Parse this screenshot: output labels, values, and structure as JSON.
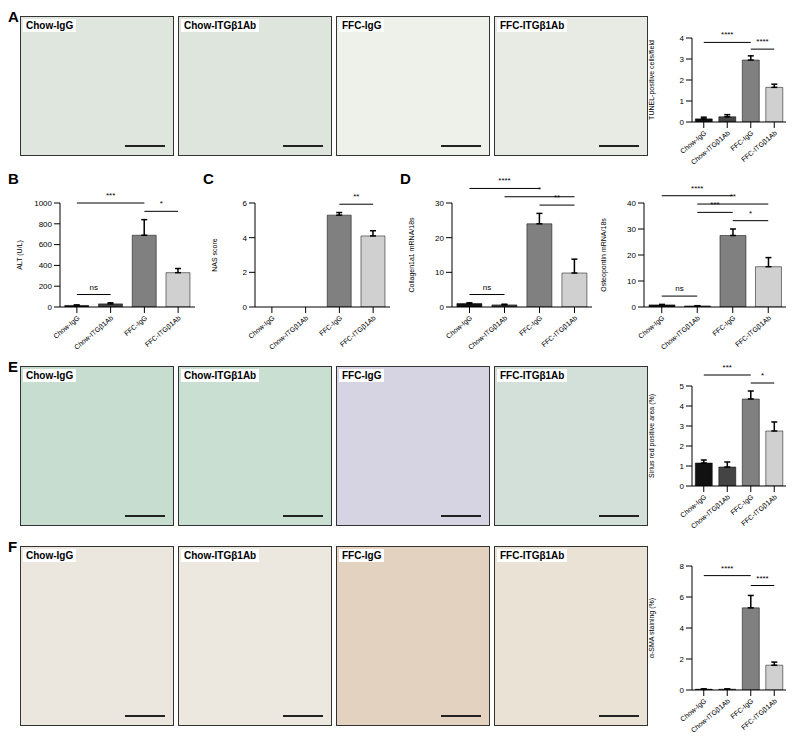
{
  "figure": {
    "panel_labels": [
      "A",
      "B",
      "C",
      "D",
      "E",
      "F"
    ],
    "image_rows": [
      {
        "panel": "A",
        "images": [
          "Chow-IgG",
          "Chow-ITGβ1Ab",
          "FFC-IgG",
          "FFC-ITGβ1Ab"
        ]
      },
      {
        "panel": "E",
        "images": [
          "Chow-IgG",
          "Chow-ITGβ1Ab",
          "FFC-IgG",
          "FFC-ITGβ1Ab"
        ]
      },
      {
        "panel": "F",
        "images": [
          "Chow-IgG",
          "Chow-ITGβ1Ab",
          "FFC-IgG",
          "FFC-ITGβ1Ab"
        ]
      }
    ]
  },
  "chart_data": [
    {
      "type": "bar",
      "ylabel": "TUNEL-positive cells/field",
      "categories": [
        "Chow-IgG",
        "Chow-ITGβ1Ab",
        "FFC-IgG",
        "FFC-ITGβ1Ab"
      ],
      "values": [
        0.15,
        0.25,
        2.95,
        1.65
      ],
      "errors": [
        0.08,
        0.1,
        0.2,
        0.15
      ],
      "colors": [
        "#111111",
        "#444444",
        "#808080",
        "#d0d0d0"
      ],
      "ylim": [
        0,
        4
      ],
      "yticks": [
        0,
        1,
        2,
        3,
        4
      ],
      "significance": [
        {
          "from": "FFC-IgG",
          "to": "FFC-ITGβ1Ab",
          "label": "****"
        },
        {
          "from": "Chow-IgG",
          "to": "FFC-IgG",
          "label": "****"
        }
      ]
    },
    {
      "type": "bar",
      "ylabel": "ALT (U/L)",
      "categories": [
        "Chow-IgG",
        "Chow-ITGβ1Ab",
        "FFC-IgG",
        "FFC-ITGβ1Ab"
      ],
      "values": [
        15,
        30,
        690,
        330
      ],
      "errors": [
        5,
        10,
        150,
        40
      ],
      "colors": [
        "#111111",
        "#444444",
        "#808080",
        "#d0d0d0"
      ],
      "ylim": [
        0,
        1000
      ],
      "yticks": [
        0,
        200,
        400,
        600,
        800,
        1000
      ],
      "significance": [
        {
          "from": "Chow-IgG",
          "to": "Chow-ITGβ1Ab",
          "label": "ns"
        },
        {
          "from": "FFC-IgG",
          "to": "FFC-ITGβ1Ab",
          "label": "*"
        },
        {
          "from": "Chow-IgG",
          "to": "FFC-IgG",
          "label": "***"
        }
      ]
    },
    {
      "type": "bar",
      "ylabel": "NAS score",
      "categories": [
        "Chow-IgG",
        "Chow-ITGβ1Ab",
        "FFC-IgG",
        "FFC-ITGβ1Ab"
      ],
      "values": [
        0,
        0,
        5.3,
        4.1
      ],
      "errors": [
        0,
        0,
        0.15,
        0.3
      ],
      "colors": [
        "#111111",
        "#444444",
        "#808080",
        "#d0d0d0"
      ],
      "ylim": [
        0,
        6
      ],
      "yticks": [
        0,
        2,
        4,
        6
      ],
      "significance": [
        {
          "from": "FFC-IgG",
          "to": "FFC-ITGβ1Ab",
          "label": "**"
        }
      ]
    },
    {
      "type": "bar",
      "ylabel": "Collagen1a1 mRNA/18s",
      "categories": [
        "Chow-IgG",
        "Chow-ITGβ1Ab",
        "FFC-IgG",
        "FFC-ITGβ1Ab"
      ],
      "values": [
        1,
        0.6,
        24,
        9.8
      ],
      "errors": [
        0.2,
        0.2,
        3,
        4
      ],
      "colors": [
        "#111111",
        "#444444",
        "#808080",
        "#d0d0d0"
      ],
      "ylim": [
        0,
        30
      ],
      "yticks": [
        0,
        10,
        20,
        30
      ],
      "significance": [
        {
          "from": "Chow-IgG",
          "to": "Chow-ITGβ1Ab",
          "label": "ns"
        },
        {
          "from": "FFC-IgG",
          "to": "FFC-ITGβ1Ab",
          "label": "**"
        },
        {
          "from": "Chow-ITGβ1Ab",
          "to": "FFC-ITGβ1Ab",
          "label": "*"
        },
        {
          "from": "Chow-IgG",
          "to": "FFC-IgG",
          "label": "****"
        }
      ]
    },
    {
      "type": "bar",
      "ylabel": "Osteopontin mRNA/18s",
      "categories": [
        "Chow-IgG",
        "Chow-ITGβ1Ab",
        "FFC-IgG",
        "FFC-ITGβ1Ab"
      ],
      "values": [
        0.8,
        0.4,
        27.5,
        15.5
      ],
      "errors": [
        0.2,
        0.1,
        2.5,
        3.5
      ],
      "colors": [
        "#111111",
        "#444444",
        "#808080",
        "#d0d0d0"
      ],
      "ylim": [
        0,
        40
      ],
      "yticks": [
        0,
        10,
        20,
        30,
        40
      ],
      "significance": [
        {
          "from": "Chow-IgG",
          "to": "Chow-ITGβ1Ab",
          "label": "ns"
        },
        {
          "from": "FFC-IgG",
          "to": "FFC-ITGβ1Ab",
          "label": "*"
        },
        {
          "from": "Chow-ITGβ1Ab",
          "to": "FFC-IgG",
          "label": "***"
        },
        {
          "from": "Chow-ITGβ1Ab",
          "to": "FFC-ITGβ1Ab",
          "label": "**"
        },
        {
          "from": "Chow-IgG",
          "to": "FFC-IgG",
          "label": "****"
        }
      ]
    },
    {
      "type": "bar",
      "ylabel": "Sirius red positive area (%)",
      "categories": [
        "Chow-IgG",
        "Chow-ITGβ1Ab",
        "FFC-IgG",
        "FFC-ITGβ1Ab"
      ],
      "values": [
        1.15,
        0.95,
        4.35,
        2.75
      ],
      "errors": [
        0.15,
        0.25,
        0.4,
        0.45
      ],
      "colors": [
        "#111111",
        "#444444",
        "#808080",
        "#d0d0d0"
      ],
      "ylim": [
        0,
        5
      ],
      "yticks": [
        0,
        1,
        2,
        3,
        4,
        5
      ],
      "significance": [
        {
          "from": "FFC-IgG",
          "to": "FFC-ITGβ1Ab",
          "label": "*"
        },
        {
          "from": "Chow-IgG",
          "to": "FFC-IgG",
          "label": "***"
        }
      ]
    },
    {
      "type": "bar",
      "ylabel": "α-SMA staining (%)",
      "categories": [
        "Chow-IgG",
        "Chow-ITGβ1Ab",
        "FFC-IgG",
        "FFC-ITGβ1Ab"
      ],
      "values": [
        0.05,
        0.05,
        5.3,
        1.6
      ],
      "errors": [
        0.02,
        0.02,
        0.8,
        0.2
      ],
      "colors": [
        "#111111",
        "#444444",
        "#808080",
        "#d0d0d0"
      ],
      "ylim": [
        0,
        8
      ],
      "yticks": [
        0,
        2,
        4,
        6,
        8
      ],
      "significance": [
        {
          "from": "FFC-IgG",
          "to": "FFC-ITGβ1Ab",
          "label": "****"
        },
        {
          "from": "Chow-IgG",
          "to": "FFC-IgG",
          "label": "****"
        }
      ]
    }
  ]
}
